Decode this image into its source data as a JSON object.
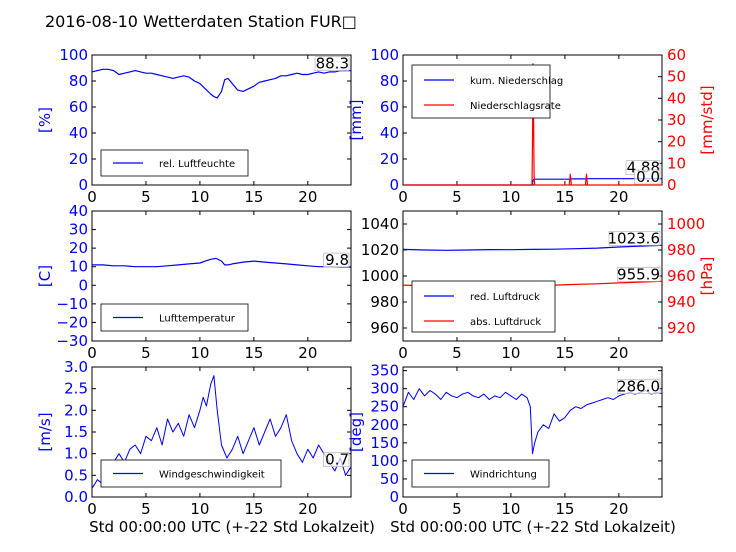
{
  "title": "2016-08-10 Wetterdaten Station FUR□",
  "xlabel": "Std 00:00:00 UTC (+-22 Std Lokalzeit)",
  "colors": {
    "primary": "#0000ff",
    "secondary": "#ff0000",
    "axes": "#000000"
  },
  "chart_data": [
    {
      "type": "line",
      "ylabel": "[%]",
      "xlim": [
        0,
        24
      ],
      "ylim": [
        0,
        100
      ],
      "xticks": [
        "0",
        "5",
        "10",
        "15",
        "20"
      ],
      "yticks": [
        "0",
        "20",
        "40",
        "60",
        "80",
        "100"
      ],
      "legend": [
        "rel. Luftfeuchte"
      ],
      "last_value": "88.3",
      "series": [
        {
          "name": "rel. Luftfeuchte",
          "x": [
            0,
            0.5,
            1,
            1.5,
            2,
            2.5,
            3,
            3.5,
            4,
            4.5,
            5,
            5.5,
            6,
            6.5,
            7,
            7.5,
            8,
            8.5,
            9,
            9.5,
            10,
            10.5,
            11,
            11.3,
            11.6,
            12,
            12.3,
            12.6,
            13,
            13.5,
            14,
            14.5,
            15,
            15.5,
            16,
            16.5,
            17,
            17.5,
            18,
            18.5,
            19,
            19.5,
            20,
            20.5,
            21,
            21.5,
            22,
            22.5,
            23,
            23.5,
            24
          ],
          "y": [
            87,
            88,
            89,
            89,
            88,
            85,
            86,
            87,
            88,
            87,
            86,
            86,
            85,
            84,
            83,
            82,
            83,
            84,
            83,
            80,
            78,
            74,
            70,
            68,
            67,
            72,
            81,
            82,
            78,
            73,
            72,
            74,
            76,
            79,
            80,
            81,
            82,
            84,
            84,
            85,
            86,
            85,
            85,
            86,
            87,
            86,
            87,
            87,
            88,
            88,
            88
          ]
        }
      ]
    },
    {
      "type": "line",
      "ylabel": "[mm]",
      "ylabel_right": "[mm/std]",
      "xlim": [
        0,
        24
      ],
      "ylim": [
        0,
        100
      ],
      "ylim_right": [
        0,
        60
      ],
      "xticks": [
        "0",
        "5",
        "10",
        "15",
        "20"
      ],
      "yticks": [
        "0",
        "20",
        "40",
        "60",
        "80",
        "100"
      ],
      "yticks_right": [
        "0",
        "10",
        "20",
        "30",
        "40",
        "50",
        "60"
      ],
      "legend": [
        "kum. Niederschlag",
        "Niederschlagsrate"
      ],
      "last_value": "4.88",
      "last_value_right": "0.0",
      "series": [
        {
          "name": "kum. Niederschlag",
          "axis": "left",
          "x": [
            0,
            12.0,
            12.05,
            12.1,
            12.2,
            15.5,
            15.6,
            17.0,
            17.1,
            24
          ],
          "y": [
            0,
            0,
            3.5,
            4.2,
            4.5,
            4.5,
            4.7,
            4.7,
            4.88,
            4.88
          ]
        },
        {
          "name": "Niederschlagsrate",
          "axis": "right",
          "x": [
            0,
            11.95,
            12.0,
            12.05,
            12.1,
            12.15,
            12.2,
            15.4,
            15.5,
            15.6,
            16.9,
            17.0,
            17.1,
            24
          ],
          "y": [
            0,
            0,
            20,
            56,
            30,
            4,
            0,
            0,
            5,
            0,
            0,
            5,
            0,
            0
          ]
        }
      ]
    },
    {
      "type": "line",
      "ylabel": "[C]",
      "xlim": [
        0,
        24
      ],
      "ylim": [
        -30,
        40
      ],
      "xticks": [
        "0",
        "5",
        "10",
        "15",
        "20"
      ],
      "yticks": [
        "−30",
        "−20",
        "−10",
        "0",
        "10",
        "20",
        "30",
        "40"
      ],
      "legend": [
        "Lufttemperatur"
      ],
      "last_value": "9.8",
      "series": [
        {
          "name": "Lufttemperatur",
          "x": [
            0,
            1,
            2,
            3,
            4,
            5,
            6,
            7,
            8,
            9,
            10,
            10.5,
            11,
            11.5,
            12,
            12.3,
            12.6,
            13,
            14,
            15,
            16,
            17,
            18,
            19,
            20,
            21,
            22,
            23,
            24
          ],
          "y": [
            11,
            11,
            10.5,
            10.5,
            10,
            10,
            10,
            10.5,
            11,
            11.5,
            12,
            13,
            14,
            14.5,
            13,
            11,
            11,
            11.5,
            12.5,
            13,
            12.5,
            12,
            11.5,
            11,
            10.5,
            10,
            10,
            9.8,
            9.8
          ]
        }
      ]
    },
    {
      "type": "line",
      "ylabel_right": "[hPa]",
      "xlim": [
        0,
        24
      ],
      "ylim": [
        950,
        1050
      ],
      "ylim_right": [
        910,
        1010
      ],
      "xticks": [
        "0",
        "5",
        "10",
        "15",
        "20"
      ],
      "yticks": [
        "960",
        "980",
        "1000",
        "1020",
        "1040"
      ],
      "yticks_right": [
        "920",
        "940",
        "960",
        "980",
        "1000"
      ],
      "legend": [
        "red. Luftdruck",
        "abs. Luftdruck"
      ],
      "last_value": "1023.6",
      "last_value_right": "955.9",
      "series": [
        {
          "name": "red. Luftdruck",
          "axis": "left",
          "x": [
            0,
            2,
            4,
            6,
            8,
            10,
            12,
            14,
            16,
            18,
            20,
            22,
            24
          ],
          "y": [
            1020.5,
            1020,
            1019.8,
            1020,
            1020.3,
            1020.2,
            1020.5,
            1020.6,
            1021,
            1021.5,
            1022.3,
            1023,
            1023.6
          ]
        },
        {
          "name": "abs. Luftdruck",
          "axis": "right",
          "x": [
            0,
            2,
            4,
            6,
            8,
            10,
            12,
            14,
            16,
            18,
            20,
            22,
            24
          ],
          "y": [
            953,
            952.5,
            952.3,
            952.5,
            952.8,
            952.7,
            953,
            953,
            953.5,
            954,
            954.7,
            955.3,
            955.9
          ]
        }
      ]
    },
    {
      "type": "line",
      "ylabel": "[m/s]",
      "xlim": [
        0,
        24
      ],
      "ylim": [
        0,
        3
      ],
      "xticks": [
        "0",
        "5",
        "10",
        "15",
        "20"
      ],
      "yticks": [
        "0.0",
        "0.5",
        "1.0",
        "1.5",
        "2.0",
        "2.5",
        "3.0"
      ],
      "legend": [
        "Windgeschwindigkeit"
      ],
      "last_value": "0.7",
      "series": [
        {
          "name": "Windgeschwindigkeit",
          "x": [
            0,
            0.5,
            1,
            1.5,
            2,
            2.5,
            3,
            3.5,
            4,
            4.5,
            5,
            5.5,
            6,
            6.5,
            7,
            7.5,
            8,
            8.5,
            9,
            9.5,
            10,
            10.3,
            10.6,
            11,
            11.3,
            11.6,
            12,
            12.5,
            13,
            13.5,
            14,
            14.5,
            15,
            15.5,
            16,
            16.5,
            17,
            17.5,
            18,
            18.5,
            19,
            19.5,
            20,
            20.5,
            21,
            21.5,
            22,
            22.5,
            23,
            23.5,
            24
          ],
          "y": [
            0.2,
            0.4,
            0.3,
            0.6,
            0.8,
            1.0,
            0.8,
            1.1,
            1.2,
            1.0,
            1.4,
            1.3,
            1.6,
            1.2,
            1.8,
            1.5,
            1.7,
            1.4,
            1.9,
            1.6,
            2.0,
            2.3,
            2.1,
            2.6,
            2.8,
            2.0,
            1.2,
            0.9,
            1.1,
            1.4,
            1.0,
            1.3,
            1.6,
            1.2,
            1.5,
            1.8,
            1.4,
            1.6,
            1.9,
            1.3,
            1.0,
            0.8,
            1.1,
            0.9,
            1.2,
            1.0,
            0.8,
            0.6,
            0.9,
            0.5,
            0.7
          ]
        }
      ]
    },
    {
      "type": "line",
      "ylabel": "[deg]",
      "xlim": [
        0,
        24
      ],
      "ylim": [
        0,
        360
      ],
      "xticks": [
        "0",
        "5",
        "10",
        "15",
        "20"
      ],
      "yticks": [
        "0",
        "50",
        "100",
        "150",
        "200",
        "250",
        "300",
        "350"
      ],
      "legend": [
        "Windrichtung"
      ],
      "last_value": "286.0",
      "series": [
        {
          "name": "Windrichtung",
          "x": [
            0,
            0.5,
            1,
            1.5,
            2,
            2.5,
            3,
            3.5,
            4,
            4.5,
            5,
            5.5,
            6,
            6.5,
            7,
            7.5,
            8,
            8.5,
            9,
            9.5,
            10,
            10.5,
            11,
            11.5,
            11.8,
            12.0,
            12.2,
            12.5,
            13,
            13.5,
            14,
            14.5,
            15,
            15.5,
            16,
            16.5,
            17,
            17.5,
            18,
            18.5,
            19,
            19.5,
            20,
            20.5,
            21,
            21.5,
            22,
            22.5,
            23,
            23.5,
            24
          ],
          "y": [
            250,
            290,
            270,
            300,
            280,
            295,
            285,
            270,
            290,
            280,
            275,
            285,
            290,
            280,
            275,
            285,
            270,
            280,
            275,
            290,
            280,
            270,
            285,
            275,
            250,
            120,
            150,
            180,
            200,
            190,
            230,
            210,
            220,
            240,
            250,
            245,
            255,
            260,
            265,
            270,
            275,
            270,
            280,
            285,
            290,
            285,
            290,
            295,
            285,
            290,
            286
          ]
        }
      ]
    }
  ]
}
